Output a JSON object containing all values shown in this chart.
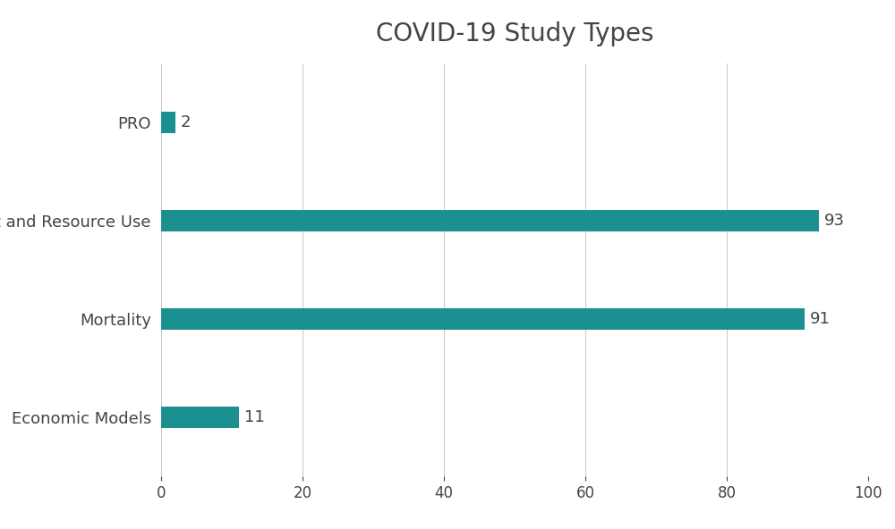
{
  "title": "COVID-19 Study Types",
  "categories": [
    "PRO",
    "Cost and Resource Use",
    "Mortality",
    "Economic Models"
  ],
  "values": [
    2,
    93,
    91,
    11
  ],
  "bar_color": "#1a9090",
  "background_color": "#ffffff",
  "xlim": [
    0,
    100
  ],
  "xticks": [
    0,
    20,
    40,
    60,
    80,
    100
  ],
  "title_fontsize": 20,
  "label_fontsize": 13,
  "tick_fontsize": 12,
  "bar_height": 0.22,
  "grid_color": "#cccccc",
  "text_color": "#444444",
  "value_label_fontsize": 13,
  "grid_linewidth": 0.8
}
